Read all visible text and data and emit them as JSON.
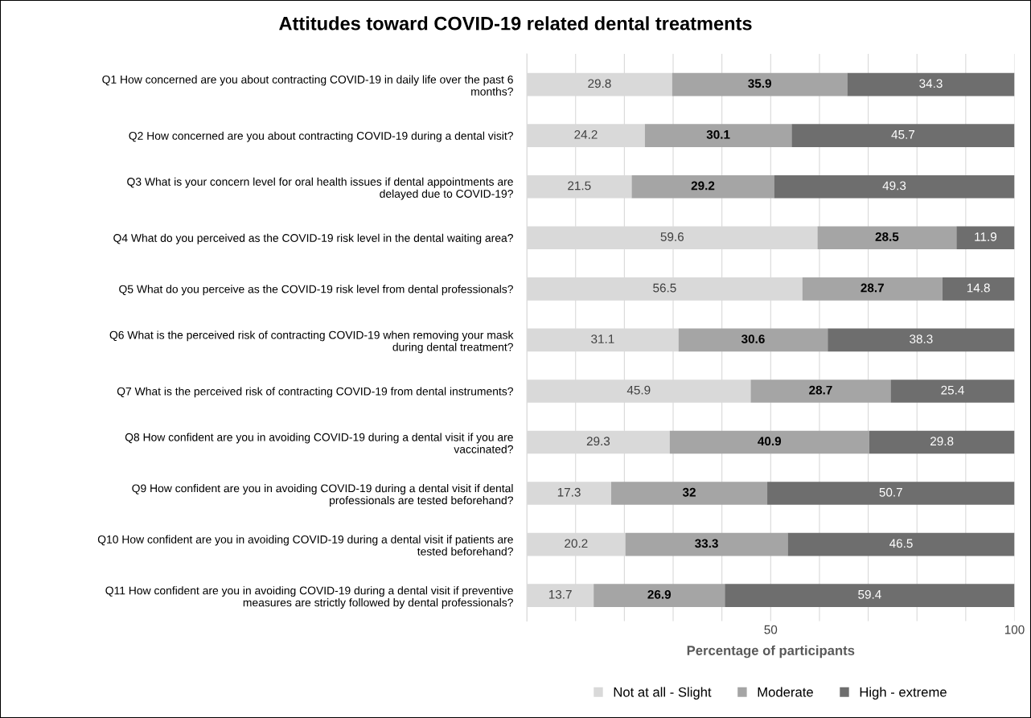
{
  "chart_data": {
    "type": "bar",
    "orientation": "horizontal",
    "stacked": true,
    "title": "Attitudes toward COVID-19 related dental treatments",
    "xlabel": "Percentage of participants",
    "categories": [
      "Q1 How concerned are you about contracting COVID-19 in daily life over the past 6\nmonths?",
      "Q2 How concerned are you about contracting COVID-19 during a dental visit?",
      "Q3 What is your concern level for oral health issues if dental appointments are\ndelayed due to COVID-19?",
      "Q4 What do you perceived as the COVID-19 risk level in the dental waiting area?",
      "Q5 What do you perceive as the COVID-19 risk level from dental professionals?",
      "Q6 What is the perceived risk of contracting COVID-19 when removing your mask\nduring dental treatment?",
      "Q7 What is the perceived risk of contracting COVID-19 from dental instruments?",
      "Q8 How confident are you in avoiding COVID-19 during a dental visit if you are\nvaccinated?",
      "Q9 How confident are you in avoiding COVID-19 during a dental visit if dental\nprofessionals are tested beforehand?",
      "Q10 How confident are you in avoiding COVID-19 during a dental visit if patients are\ntested beforehand?",
      "Q11 How confident are you in avoiding COVID-19 during a dental visit if preventive\nmeasures are strictly followed by dental professionals?"
    ],
    "series": [
      {
        "name": "Not at all - Slight",
        "color": "#d9d9d9",
        "values": [
          29.8,
          24.2,
          21.5,
          59.6,
          56.5,
          31.1,
          45.9,
          29.3,
          17.3,
          20.2,
          13.7
        ]
      },
      {
        "name": "Moderate",
        "color": "#a5a5a5",
        "values": [
          35.9,
          30.1,
          29.2,
          28.5,
          28.7,
          30.6,
          28.7,
          40.9,
          32,
          33.3,
          26.9
        ]
      },
      {
        "name": "High - extreme",
        "color": "#6e6e6e",
        "values": [
          34.3,
          45.7,
          49.3,
          11.9,
          14.8,
          38.3,
          25.4,
          29.8,
          50.7,
          46.5,
          59.4
        ]
      }
    ],
    "xlim": [
      0,
      100
    ],
    "xticks": [
      {
        "value": 0,
        "label": null
      },
      {
        "value": 10,
        "label": null
      },
      {
        "value": 20,
        "label": null
      },
      {
        "value": 30,
        "label": null
      },
      {
        "value": 40,
        "label": null
      },
      50,
      {
        "value": 60,
        "label": null
      },
      {
        "value": 70,
        "label": null
      },
      {
        "value": 80,
        "label": null
      },
      {
        "value": 90,
        "label": null
      },
      100
    ],
    "grid": "x",
    "legend": "bottom",
    "data_labels": true
  }
}
